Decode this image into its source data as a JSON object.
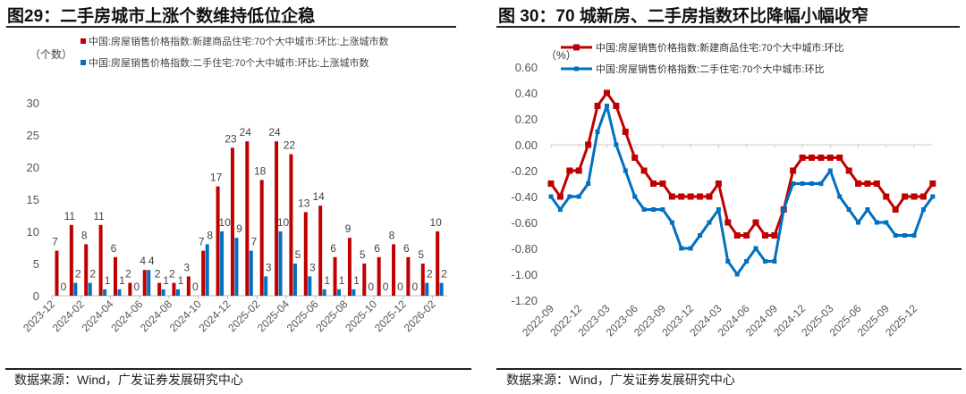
{
  "left": {
    "title": "图29：二手房城市上涨个数维持低位企稳",
    "source": "数据来源：Wind，广发证券发展研究中心"
  },
  "right": {
    "title": "图 30：70 城新房、二手房指数环比降幅小幅收窄",
    "source": "数据来源：Wind，广发证券发展研究中心"
  },
  "chart_data": [
    {
      "type": "bar",
      "ylabel": "（个数）",
      "ylim": [
        0,
        30
      ],
      "yticks": [
        0,
        5,
        10,
        15,
        20,
        25,
        30
      ],
      "grid": false,
      "legend": "top",
      "categories": [
        "2023-12",
        "2024-01",
        "2024-02",
        "2024-03",
        "2024-04",
        "2024-05",
        "2024-06",
        "2024-07",
        "2024-08",
        "2024-09",
        "2024-10",
        "2024-11",
        "2024-12",
        "2025-01",
        "2025-02",
        "2025-03",
        "2025-04",
        "2025-05",
        "2025-06",
        "2025-07",
        "2025-08",
        "2025-09",
        "2025-10",
        "2025-11",
        "2025-12",
        "2026-01",
        "2026-02"
      ],
      "tick_labels": [
        "2023-12",
        "2024-02",
        "2024-04",
        "2024-06",
        "2024-08",
        "2024-10",
        "2024-12",
        "2025-02",
        "2025-04",
        "2025-06",
        "2025-08",
        "2025-10",
        "2025-12",
        "2026-02"
      ],
      "series": [
        {
          "name": "中国:房屋销售价格指数:新建商品住宅:70个大中城市:环比:上涨城市数",
          "color": "#C00000",
          "values": [
            7,
            11,
            8,
            11,
            6,
            2,
            4,
            2,
            2,
            3,
            7,
            17,
            23,
            24,
            18,
            24,
            22,
            13,
            14,
            6,
            9,
            5,
            6,
            8,
            6,
            5,
            10
          ]
        },
        {
          "name": "中国:房屋销售价格指数:二手住宅:70个大中城市:环比:上涨城市数",
          "color": "#0070C0",
          "values": [
            0,
            2,
            2,
            1,
            1,
            0,
            4,
            1,
            1,
            0,
            8,
            10,
            9,
            7,
            3,
            10,
            5,
            3,
            1,
            1,
            1,
            0,
            0,
            0,
            0,
            2,
            2
          ]
        }
      ]
    },
    {
      "type": "line",
      "ylabel": "（%）",
      "ylim": [
        -1.2,
        0.6
      ],
      "yticks": [
        "0.60",
        "0.40",
        "0.20",
        "0.00",
        "-0.20",
        "-0.40",
        "-0.60",
        "-0.80",
        "-1.00",
        "-1.20"
      ],
      "grid": false,
      "legend": "top",
      "x_start": "2022-09",
      "x_end": "2026-02",
      "tick_labels": [
        "2022-09",
        "2022-12",
        "2023-03",
        "2023-06",
        "2023-09",
        "2023-12",
        "2024-03",
        "2024-06",
        "2024-09",
        "2024-12",
        "2025-03",
        "2025-06",
        "2025-09",
        "2025-12"
      ],
      "series": [
        {
          "name": "中国:房屋销售价格指数:新建商品住宅:70个大中城市:环比",
          "color": "#C00000",
          "values": [
            -0.3,
            -0.4,
            -0.2,
            -0.2,
            0.0,
            0.3,
            0.4,
            0.3,
            0.1,
            -0.1,
            -0.2,
            -0.3,
            -0.3,
            -0.4,
            -0.4,
            -0.4,
            -0.4,
            -0.4,
            -0.3,
            -0.6,
            -0.7,
            -0.7,
            -0.6,
            -0.7,
            -0.7,
            -0.5,
            -0.2,
            -0.1,
            -0.1,
            -0.1,
            -0.1,
            -0.1,
            -0.2,
            -0.3,
            -0.3,
            -0.3,
            -0.4,
            -0.5,
            -0.4,
            -0.4,
            -0.4,
            -0.3
          ]
        },
        {
          "name": "中国:房屋销售价格指数:二手住宅:70个大中城市:环比",
          "color": "#0070C0",
          "values": [
            -0.4,
            -0.5,
            -0.4,
            -0.4,
            -0.3,
            0.1,
            0.3,
            0.0,
            -0.2,
            -0.4,
            -0.5,
            -0.5,
            -0.5,
            -0.6,
            -0.8,
            -0.8,
            -0.7,
            -0.6,
            -0.5,
            -0.9,
            -1.0,
            -0.9,
            -0.8,
            -0.9,
            -0.9,
            -0.5,
            -0.3,
            -0.3,
            -0.3,
            -0.3,
            -0.2,
            -0.4,
            -0.5,
            -0.6,
            -0.5,
            -0.6,
            -0.6,
            -0.7,
            -0.7,
            -0.7,
            -0.5,
            -0.4
          ]
        }
      ]
    }
  ]
}
